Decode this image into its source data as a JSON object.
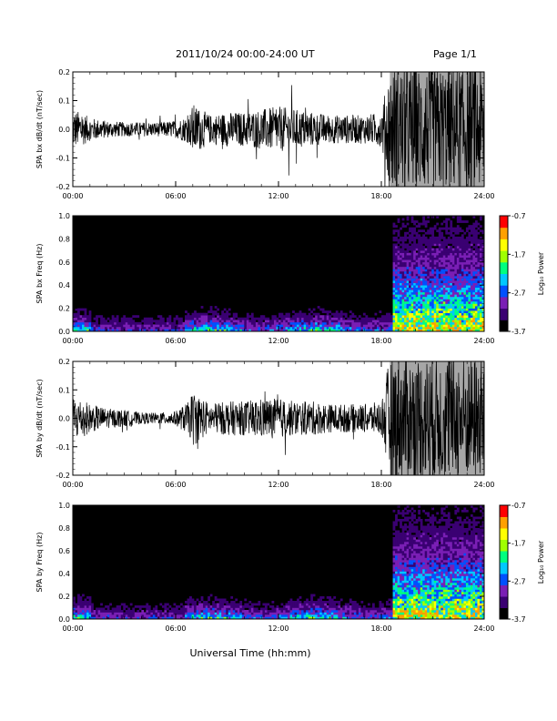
{
  "header": {
    "title": "2011/10/24  00:00-24:00 UT",
    "page": "Page 1/1"
  },
  "x_axis_label": "Universal Time (hh:mm)",
  "colorbar": {
    "label": "Log₁₀ Power",
    "ticks": [
      "-0.7",
      "-1.7",
      "-2.7",
      "-3.7"
    ],
    "range": [
      -3.7,
      -0.7
    ],
    "colormap": [
      "#000000",
      "#3a0072",
      "#7a1fb5",
      "#0050ff",
      "#00c8ff",
      "#00ff80",
      "#a0ff00",
      "#ffff00",
      "#ffa000",
      "#ff0000"
    ]
  },
  "chart_data": [
    {
      "type": "line",
      "ylabel": "SPA bx dB/dt (nT/sec)",
      "x_ticks": [
        "00:00",
        "06:00",
        "12:00",
        "18:00",
        "24:00"
      ],
      "y_ticks": [
        "0.2",
        "0.1",
        "0.0",
        "-0.1",
        "-0.2"
      ],
      "xlim_hours": [
        0,
        24
      ],
      "ylim": [
        -0.2,
        0.2
      ],
      "envelope": {
        "hours": [
          0,
          0.5,
          1,
          2,
          3,
          4,
          5,
          6,
          6.8,
          7,
          8,
          9,
          10,
          11,
          12,
          13,
          14,
          15,
          16,
          17,
          18,
          18.5,
          19,
          20,
          21,
          22,
          23,
          24
        ],
        "amplitude": [
          0.07,
          0.06,
          0.04,
          0.03,
          0.025,
          0.025,
          0.025,
          0.03,
          0.05,
          0.09,
          0.05,
          0.06,
          0.06,
          0.07,
          0.08,
          0.07,
          0.06,
          0.05,
          0.05,
          0.05,
          0.06,
          0.22,
          0.22,
          0.22,
          0.22,
          0.22,
          0.22,
          0.22
        ]
      }
    },
    {
      "type": "heatmap",
      "ylabel": "SPA bx Freq (Hz)",
      "x_ticks": [
        "00:00",
        "06:00",
        "12:00",
        "18:00",
        "24:00"
      ],
      "y_ticks": [
        "1.0",
        "0.8",
        "0.6",
        "0.4",
        "0.2",
        "0.0"
      ],
      "xlim_hours": [
        0,
        24
      ],
      "ylim": [
        0,
        1.0
      ]
    },
    {
      "type": "line",
      "ylabel": "SPA by dB/dt (nT/sec)",
      "x_ticks": [
        "00:00",
        "06:00",
        "12:00",
        "18:00",
        "24:00"
      ],
      "y_ticks": [
        "0.2",
        "0.1",
        "0.0",
        "-0.1",
        "-0.2"
      ],
      "xlim_hours": [
        0,
        24
      ],
      "ylim": [
        -0.2,
        0.2
      ],
      "envelope": {
        "hours": [
          0,
          0.5,
          1,
          2,
          3,
          4,
          5,
          6,
          6.8,
          7,
          8,
          9,
          10,
          11,
          12,
          13,
          14,
          15,
          16,
          17,
          18,
          18.5,
          19,
          20,
          21,
          22,
          23,
          24
        ],
        "amplitude": [
          0.08,
          0.07,
          0.05,
          0.035,
          0.03,
          0.02,
          0.02,
          0.025,
          0.06,
          0.1,
          0.05,
          0.06,
          0.06,
          0.07,
          0.07,
          0.06,
          0.06,
          0.05,
          0.05,
          0.05,
          0.06,
          0.22,
          0.22,
          0.22,
          0.22,
          0.22,
          0.22,
          0.22
        ]
      }
    },
    {
      "type": "heatmap",
      "ylabel": "SPA by Freq (Hz)",
      "x_ticks": [
        "00:00",
        "06:00",
        "12:00",
        "18:00",
        "24:00"
      ],
      "y_ticks": [
        "1.0",
        "0.8",
        "0.6",
        "0.4",
        "0.2",
        "0.0"
      ],
      "xlim_hours": [
        0,
        24
      ],
      "ylim": [
        0,
        1.0
      ]
    }
  ]
}
